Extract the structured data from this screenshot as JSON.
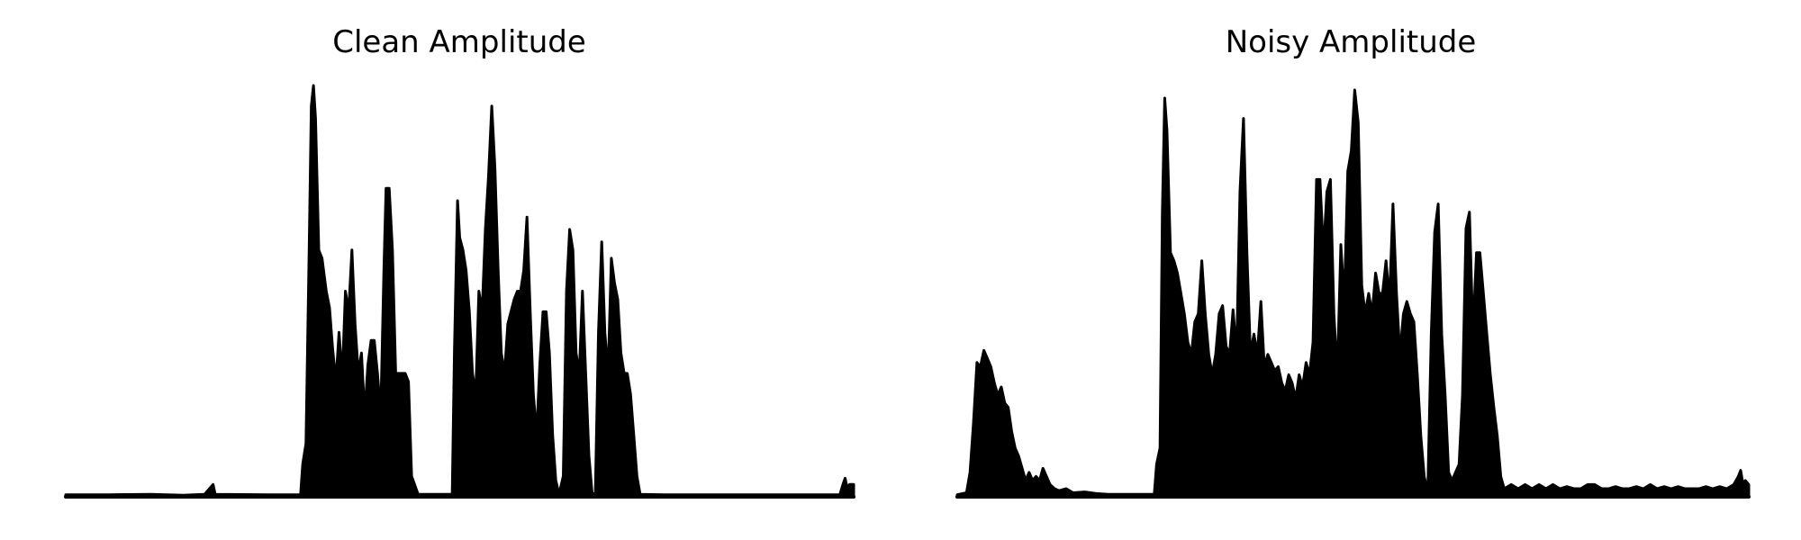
{
  "chart_data": [
    {
      "type": "area",
      "title": "Clean Amplitude",
      "xlabel": "",
      "ylabel": "",
      "axes_visible": false,
      "grid": false,
      "color": "#000000",
      "ylim": [
        0,
        1
      ],
      "envelope": [
        [
          0,
          0.005
        ],
        [
          40,
          0.005
        ],
        [
          80,
          0.006
        ],
        [
          110,
          0.004
        ],
        [
          130,
          0.006
        ],
        [
          138,
          0.03
        ],
        [
          140,
          0.006
        ],
        [
          190,
          0.005
        ],
        [
          220,
          0.005
        ],
        [
          222,
          0.08
        ],
        [
          225,
          0.13
        ],
        [
          228,
          0.6
        ],
        [
          230,
          0.95
        ],
        [
          232,
          1.0
        ],
        [
          234,
          0.92
        ],
        [
          237,
          0.6
        ],
        [
          240,
          0.58
        ],
        [
          244,
          0.5
        ],
        [
          247,
          0.46
        ],
        [
          250,
          0.36
        ],
        [
          253,
          0.28
        ],
        [
          256,
          0.4
        ],
        [
          259,
          0.29
        ],
        [
          262,
          0.5
        ],
        [
          265,
          0.45
        ],
        [
          268,
          0.6
        ],
        [
          271,
          0.42
        ],
        [
          274,
          0.3
        ],
        [
          277,
          0.35
        ],
        [
          280,
          0.2
        ],
        [
          283,
          0.32
        ],
        [
          286,
          0.38
        ],
        [
          289,
          0.38
        ],
        [
          292,
          0.3
        ],
        [
          295,
          0.2
        ],
        [
          298,
          0.55
        ],
        [
          300,
          0.75
        ],
        [
          303,
          0.75
        ],
        [
          306,
          0.6
        ],
        [
          309,
          0.3
        ],
        [
          312,
          0.3
        ],
        [
          315,
          0.3
        ],
        [
          318,
          0.3
        ],
        [
          321,
          0.28
        ],
        [
          324,
          0.05
        ],
        [
          330,
          0.006
        ],
        [
          362,
          0.006
        ],
        [
          364,
          0.35
        ],
        [
          367,
          0.72
        ],
        [
          369,
          0.63
        ],
        [
          372,
          0.6
        ],
        [
          375,
          0.55
        ],
        [
          378,
          0.45
        ],
        [
          381,
          0.3
        ],
        [
          384,
          0.25
        ],
        [
          387,
          0.5
        ],
        [
          390,
          0.45
        ],
        [
          393,
          0.65
        ],
        [
          396,
          0.78
        ],
        [
          399,
          0.95
        ],
        [
          402,
          0.8
        ],
        [
          405,
          0.55
        ],
        [
          408,
          0.35
        ],
        [
          411,
          0.3
        ],
        [
          414,
          0.42
        ],
        [
          417,
          0.45
        ],
        [
          420,
          0.48
        ],
        [
          423,
          0.5
        ],
        [
          426,
          0.5
        ],
        [
          429,
          0.55
        ],
        [
          432,
          0.68
        ],
        [
          435,
          0.45
        ],
        [
          438,
          0.25
        ],
        [
          441,
          0.15
        ],
        [
          444,
          0.32
        ],
        [
          447,
          0.45
        ],
        [
          450,
          0.45
        ],
        [
          453,
          0.35
        ],
        [
          456,
          0.15
        ],
        [
          459,
          0.04
        ],
        [
          462,
          0.006
        ],
        [
          466,
          0.05
        ],
        [
          469,
          0.5
        ],
        [
          472,
          0.65
        ],
        [
          475,
          0.6
        ],
        [
          478,
          0.35
        ],
        [
          481,
          0.3
        ],
        [
          484,
          0.5
        ],
        [
          487,
          0.3
        ],
        [
          490,
          0.1
        ],
        [
          493,
          0.01
        ],
        [
          496,
          0.006
        ],
        [
          499,
          0.4
        ],
        [
          502,
          0.62
        ],
        [
          505,
          0.4
        ],
        [
          508,
          0.3
        ],
        [
          511,
          0.58
        ],
        [
          514,
          0.52
        ],
        [
          517,
          0.48
        ],
        [
          520,
          0.35
        ],
        [
          523,
          0.3
        ],
        [
          526,
          0.3
        ],
        [
          529,
          0.25
        ],
        [
          532,
          0.15
        ],
        [
          535,
          0.05
        ],
        [
          538,
          0.006
        ],
        [
          560,
          0.005
        ],
        [
          600,
          0.005
        ],
        [
          650,
          0.005
        ],
        [
          700,
          0.005
        ],
        [
          725,
          0.005
        ],
        [
          728,
          0.03
        ],
        [
          730,
          0.045
        ],
        [
          732,
          0.02
        ],
        [
          734,
          0.03
        ],
        [
          738,
          0.03
        ]
      ]
    },
    {
      "type": "area",
      "title": "Noisy Amplitude",
      "xlabel": "",
      "ylabel": "",
      "axes_visible": false,
      "grid": false,
      "color": "#000000",
      "ylim": [
        0,
        1
      ],
      "envelope": [
        [
          0,
          0.005
        ],
        [
          8,
          0.01
        ],
        [
          11,
          0.06
        ],
        [
          14,
          0.18
        ],
        [
          17,
          0.33
        ],
        [
          20,
          0.32
        ],
        [
          23,
          0.36
        ],
        [
          26,
          0.34
        ],
        [
          29,
          0.32
        ],
        [
          32,
          0.28
        ],
        [
          35,
          0.25
        ],
        [
          38,
          0.27
        ],
        [
          41,
          0.23
        ],
        [
          44,
          0.22
        ],
        [
          47,
          0.16
        ],
        [
          50,
          0.12
        ],
        [
          53,
          0.1
        ],
        [
          56,
          0.07
        ],
        [
          59,
          0.04
        ],
        [
          62,
          0.06
        ],
        [
          65,
          0.04
        ],
        [
          68,
          0.05
        ],
        [
          71,
          0.04
        ],
        [
          74,
          0.07
        ],
        [
          77,
          0.05
        ],
        [
          80,
          0.03
        ],
        [
          84,
          0.02
        ],
        [
          88,
          0.015
        ],
        [
          94,
          0.02
        ],
        [
          100,
          0.01
        ],
        [
          110,
          0.012
        ],
        [
          120,
          0.008
        ],
        [
          130,
          0.006
        ],
        [
          150,
          0.006
        ],
        [
          170,
          0.006
        ],
        [
          172,
          0.08
        ],
        [
          175,
          0.12
        ],
        [
          177,
          0.7
        ],
        [
          179,
          0.98
        ],
        [
          181,
          0.9
        ],
        [
          184,
          0.6
        ],
        [
          187,
          0.58
        ],
        [
          190,
          0.55
        ],
        [
          193,
          0.5
        ],
        [
          196,
          0.45
        ],
        [
          199,
          0.38
        ],
        [
          202,
          0.35
        ],
        [
          205,
          0.43
        ],
        [
          208,
          0.45
        ],
        [
          211,
          0.58
        ],
        [
          214,
          0.45
        ],
        [
          217,
          0.35
        ],
        [
          220,
          0.3
        ],
        [
          223,
          0.35
        ],
        [
          226,
          0.45
        ],
        [
          229,
          0.47
        ],
        [
          232,
          0.37
        ],
        [
          235,
          0.35
        ],
        [
          238,
          0.46
        ],
        [
          241,
          0.35
        ],
        [
          244,
          0.75
        ],
        [
          247,
          0.93
        ],
        [
          250,
          0.6
        ],
        [
          253,
          0.35
        ],
        [
          256,
          0.4
        ],
        [
          259,
          0.35
        ],
        [
          262,
          0.48
        ],
        [
          265,
          0.32
        ],
        [
          268,
          0.35
        ],
        [
          271,
          0.33
        ],
        [
          274,
          0.31
        ],
        [
          277,
          0.32
        ],
        [
          280,
          0.28
        ],
        [
          283,
          0.26
        ],
        [
          286,
          0.3
        ],
        [
          289,
          0.28
        ],
        [
          292,
          0.24
        ],
        [
          295,
          0.3
        ],
        [
          298,
          0.27
        ],
        [
          301,
          0.33
        ],
        [
          304,
          0.3
        ],
        [
          307,
          0.38
        ],
        [
          310,
          0.78
        ],
        [
          313,
          0.78
        ],
        [
          316,
          0.6
        ],
        [
          319,
          0.75
        ],
        [
          322,
          0.78
        ],
        [
          325,
          0.45
        ],
        [
          328,
          0.3
        ],
        [
          331,
          0.62
        ],
        [
          334,
          0.48
        ],
        [
          337,
          0.8
        ],
        [
          340,
          0.85
        ],
        [
          343,
          1.0
        ],
        [
          346,
          0.92
        ],
        [
          349,
          0.52
        ],
        [
          352,
          0.45
        ],
        [
          355,
          0.5
        ],
        [
          358,
          0.45
        ],
        [
          361,
          0.55
        ],
        [
          364,
          0.5
        ],
        [
          367,
          0.5
        ],
        [
          370,
          0.58
        ],
        [
          373,
          0.48
        ],
        [
          376,
          0.72
        ],
        [
          379,
          0.5
        ],
        [
          382,
          0.35
        ],
        [
          385,
          0.45
        ],
        [
          388,
          0.48
        ],
        [
          391,
          0.45
        ],
        [
          394,
          0.43
        ],
        [
          397,
          0.3
        ],
        [
          400,
          0.15
        ],
        [
          403,
          0.05
        ],
        [
          406,
          0.01
        ],
        [
          409,
          0.4
        ],
        [
          412,
          0.65
        ],
        [
          415,
          0.72
        ],
        [
          418,
          0.4
        ],
        [
          421,
          0.25
        ],
        [
          424,
          0.06
        ],
        [
          427,
          0.04
        ],
        [
          430,
          0.06
        ],
        [
          433,
          0.08
        ],
        [
          436,
          0.25
        ],
        [
          439,
          0.66
        ],
        [
          442,
          0.7
        ],
        [
          445,
          0.4
        ],
        [
          448,
          0.6
        ],
        [
          451,
          0.6
        ],
        [
          454,
          0.5
        ],
        [
          457,
          0.4
        ],
        [
          460,
          0.3
        ],
        [
          463,
          0.22
        ],
        [
          466,
          0.15
        ],
        [
          469,
          0.05
        ],
        [
          472,
          0.02
        ],
        [
          478,
          0.03
        ],
        [
          484,
          0.02
        ],
        [
          490,
          0.03
        ],
        [
          496,
          0.02
        ],
        [
          502,
          0.03
        ],
        [
          508,
          0.02
        ],
        [
          514,
          0.03
        ],
        [
          520,
          0.02
        ],
        [
          526,
          0.025
        ],
        [
          532,
          0.02
        ],
        [
          538,
          0.02
        ],
        [
          544,
          0.03
        ],
        [
          550,
          0.03
        ],
        [
          556,
          0.02
        ],
        [
          562,
          0.02
        ],
        [
          568,
          0.025
        ],
        [
          574,
          0.02
        ],
        [
          580,
          0.02
        ],
        [
          586,
          0.025
        ],
        [
          592,
          0.02
        ],
        [
          598,
          0.03
        ],
        [
          604,
          0.02
        ],
        [
          610,
          0.025
        ],
        [
          616,
          0.02
        ],
        [
          622,
          0.025
        ],
        [
          628,
          0.02
        ],
        [
          634,
          0.02
        ],
        [
          640,
          0.02
        ],
        [
          646,
          0.025
        ],
        [
          652,
          0.02
        ],
        [
          658,
          0.025
        ],
        [
          664,
          0.02
        ],
        [
          670,
          0.03
        ],
        [
          674,
          0.05
        ],
        [
          676,
          0.065
        ],
        [
          678,
          0.03
        ],
        [
          680,
          0.04
        ],
        [
          683,
          0.03
        ]
      ]
    }
  ]
}
